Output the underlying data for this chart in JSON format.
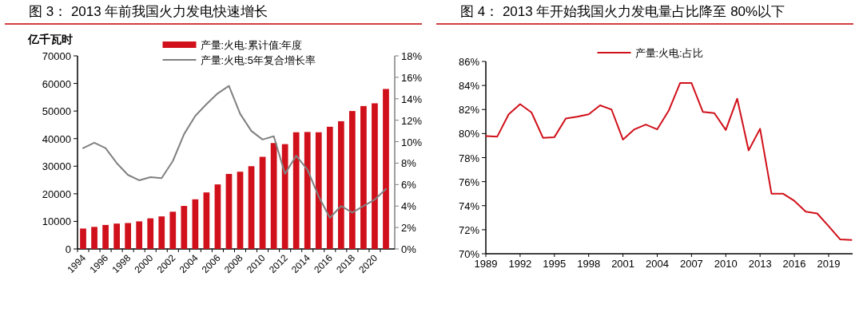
{
  "chart_data": [
    {
      "type": "bar",
      "title": "图 3：  2013 年前我国火力发电快速增长",
      "ylabel": "亿千瓦时",
      "categories": [
        "1994",
        null,
        "1996",
        null,
        "1998",
        null,
        "2000",
        null,
        "2002",
        null,
        "2004",
        null,
        "2006",
        null,
        "2008",
        null,
        "2010",
        null,
        "2012",
        null,
        "2014",
        null,
        "2016",
        null,
        "2018",
        null,
        "2020",
        null
      ],
      "series": [
        {
          "name": "产量:火电:累计值:年度",
          "type": "bar",
          "color": "#d0101a",
          "values": [
            7400,
            8000,
            8700,
            9200,
            9400,
            10000,
            11100,
            11800,
            13500,
            15600,
            18000,
            20500,
            23400,
            27200,
            28000,
            30000,
            33400,
            38400,
            38000,
            42300,
            42400,
            42300,
            44300,
            46300,
            50000,
            51800,
            52800,
            58000
          ]
        },
        {
          "name": "产量:火电:5年复合增长率",
          "type": "line",
          "axis": "y2",
          "color": "#808080",
          "values": [
            9.4,
            9.9,
            9.4,
            8.0,
            6.9,
            6.4,
            6.7,
            6.6,
            8.2,
            10.7,
            12.4,
            13.5,
            14.5,
            15.2,
            12.6,
            11.0,
            10.2,
            10.5,
            7.0,
            8.7,
            7.4,
            4.9,
            2.9,
            4.0,
            3.4,
            4.0,
            4.6,
            5.6
          ]
        }
      ],
      "ylim": [
        0,
        70000
      ],
      "yticks": [
        0,
        10000,
        20000,
        30000,
        40000,
        50000,
        60000,
        70000
      ],
      "y2lim": [
        0,
        18
      ],
      "y2ticks": [
        {
          "value": 0,
          "label": "0%"
        },
        {
          "value": 2,
          "label": "2%"
        },
        {
          "value": 4,
          "label": "4%"
        },
        {
          "value": 6,
          "label": "6%"
        },
        {
          "value": 8,
          "label": "8%"
        },
        {
          "value": 10,
          "label": "10%"
        },
        {
          "value": 12,
          "label": "12%"
        },
        {
          "value": 14,
          "label": "14%"
        },
        {
          "value": 16,
          "label": "16%"
        },
        {
          "value": 18,
          "label": "18%"
        }
      ],
      "grid": false,
      "legend": "top",
      "marker": "none",
      "line_style": "solid"
    },
    {
      "type": "line",
      "title": "图 4：  2013 年开始我国火力发电量占比降至 80%以下",
      "categories": [
        "1989",
        null,
        null,
        "1992",
        null,
        null,
        "1995",
        null,
        null,
        "1998",
        null,
        null,
        "2001",
        null,
        null,
        "2004",
        null,
        null,
        "2007",
        null,
        null,
        "2010",
        null,
        null,
        "2013",
        null,
        null,
        "2016",
        null,
        null,
        "2019",
        null,
        null
      ],
      "series": [
        {
          "name": "产量:火电:占比",
          "color": "#d0101a",
          "values": [
            79.8,
            79.75,
            81.6,
            82.45,
            81.75,
            79.65,
            79.7,
            81.25,
            81.4,
            81.6,
            82.35,
            82.0,
            79.5,
            80.35,
            80.75,
            80.35,
            81.9,
            84.2,
            84.2,
            81.8,
            81.7,
            80.3,
            82.9,
            78.6,
            80.4,
            75.0,
            75.0,
            74.4,
            73.5,
            73.35,
            72.3,
            71.2,
            71.15
          ]
        }
      ],
      "ylim": [
        70,
        86
      ],
      "yticks": [
        {
          "value": 70,
          "label": "70%"
        },
        {
          "value": 72,
          "label": "72%"
        },
        {
          "value": 74,
          "label": "74%"
        },
        {
          "value": 76,
          "label": "76%"
        },
        {
          "value": 78,
          "label": "78%"
        },
        {
          "value": 80,
          "label": "80%"
        },
        {
          "value": 82,
          "label": "82%"
        },
        {
          "value": 84,
          "label": "84%"
        },
        {
          "value": 86,
          "label": "86%"
        }
      ],
      "grid": false,
      "legend": "top",
      "marker": "none",
      "line_style": "solid"
    }
  ]
}
